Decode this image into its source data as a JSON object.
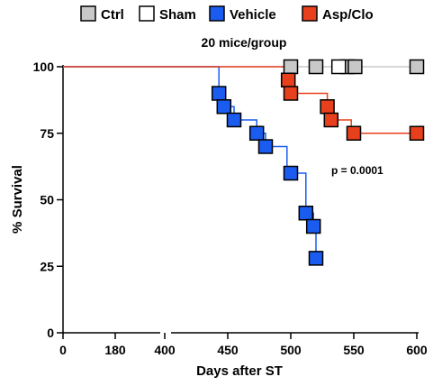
{
  "chart_data": {
    "type": "line",
    "subtitle": "20 mice/group",
    "xlabel": "Days after ST",
    "ylabel": "% Survival",
    "ylim": [
      0,
      100
    ],
    "yticks": [
      0,
      25,
      50,
      75,
      100
    ],
    "x_segments": [
      {
        "range": [
          0,
          360
        ],
        "ticks": [
          0,
          180
        ]
      },
      {
        "range": [
          400,
          600
        ],
        "ticks": [
          400,
          450,
          500,
          550,
          600
        ]
      }
    ],
    "annotation": "p = 0.0001",
    "legend": {
      "placement": "top"
    },
    "series": [
      {
        "name": "Ctrl",
        "color": "#c8c8c8",
        "line_color": "#c8c8c8",
        "steps": [
          [
            0,
            100
          ],
          [
            600,
            100
          ]
        ],
        "markers": [
          [
            500,
            100
          ],
          [
            520,
            100
          ],
          [
            545,
            100
          ],
          [
            551,
            100
          ],
          [
            600,
            100
          ]
        ]
      },
      {
        "name": "Sham",
        "color": "#ffffff",
        "line_color": "#c8c8c8",
        "steps": [
          [
            0,
            100
          ],
          [
            600,
            100
          ]
        ],
        "markers": [
          [
            538,
            100
          ]
        ]
      },
      {
        "name": "Vehicle",
        "color": "#1a5cf0",
        "line_color": "#1a5cf0",
        "steps": [
          [
            0,
            100
          ],
          [
            443,
            100
          ],
          [
            443,
            90
          ],
          [
            447,
            90
          ],
          [
            447,
            85
          ],
          [
            455,
            85
          ],
          [
            455,
            80
          ],
          [
            473,
            80
          ],
          [
            473,
            75
          ],
          [
            480,
            75
          ],
          [
            480,
            70
          ],
          [
            497,
            70
          ],
          [
            497,
            60
          ],
          [
            512,
            60
          ],
          [
            512,
            45
          ],
          [
            518,
            45
          ],
          [
            518,
            40
          ],
          [
            520,
            40
          ],
          [
            520,
            28
          ]
        ],
        "markers": [
          [
            443,
            90
          ],
          [
            447,
            85
          ],
          [
            455,
            80
          ],
          [
            473,
            75
          ],
          [
            480,
            70
          ],
          [
            500,
            60
          ],
          [
            512,
            45
          ],
          [
            518,
            40
          ],
          [
            520,
            28
          ]
        ]
      },
      {
        "name": "Asp/Clo",
        "color": "#e8401c",
        "line_color": "#e8401c",
        "steps": [
          [
            0,
            100
          ],
          [
            498,
            100
          ],
          [
            498,
            95
          ],
          [
            500,
            95
          ],
          [
            500,
            90
          ],
          [
            529,
            90
          ],
          [
            529,
            85
          ],
          [
            532,
            85
          ],
          [
            532,
            80
          ],
          [
            548,
            80
          ],
          [
            548,
            75
          ],
          [
            600,
            75
          ]
        ],
        "markers": [
          [
            498,
            95
          ],
          [
            500,
            90
          ],
          [
            529,
            85
          ],
          [
            532,
            80
          ],
          [
            550,
            75
          ],
          [
            600,
            75
          ]
        ]
      }
    ]
  }
}
